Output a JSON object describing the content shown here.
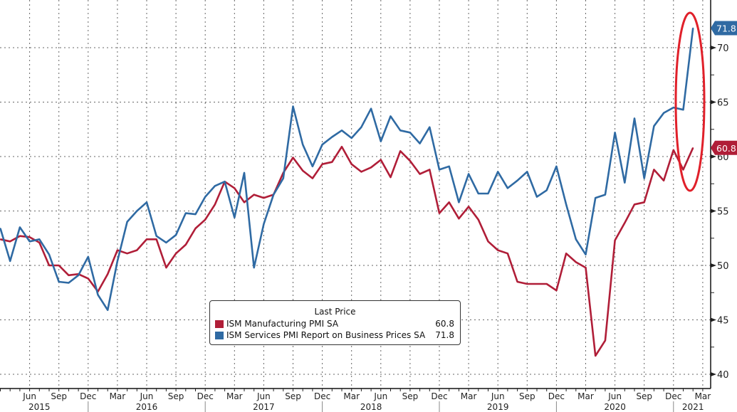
{
  "chart_data": {
    "type": "line",
    "title": "",
    "xlabel": "",
    "ylabel": "",
    "ylim": [
      39,
      73
    ],
    "y_ticks": [
      40,
      45,
      50,
      55,
      60,
      65,
      70
    ],
    "grid": true,
    "legend_placement": "bottom-center",
    "legend_title": "Last Price",
    "x": [
      "2015-03",
      "2015-04",
      "2015-05",
      "2015-06",
      "2015-07",
      "2015-08",
      "2015-09",
      "2015-10",
      "2015-11",
      "2015-12",
      "2016-01",
      "2016-02",
      "2016-03",
      "2016-04",
      "2016-05",
      "2016-06",
      "2016-07",
      "2016-08",
      "2016-09",
      "2016-10",
      "2016-11",
      "2016-12",
      "2017-01",
      "2017-02",
      "2017-03",
      "2017-04",
      "2017-05",
      "2017-06",
      "2017-07",
      "2017-08",
      "2017-09",
      "2017-10",
      "2017-11",
      "2017-12",
      "2018-01",
      "2018-02",
      "2018-03",
      "2018-04",
      "2018-05",
      "2018-06",
      "2018-07",
      "2018-08",
      "2018-09",
      "2018-10",
      "2018-11",
      "2018-12",
      "2019-01",
      "2019-02",
      "2019-03",
      "2019-04",
      "2019-05",
      "2019-06",
      "2019-07",
      "2019-08",
      "2019-09",
      "2019-10",
      "2019-11",
      "2019-12",
      "2020-01",
      "2020-02",
      "2020-03",
      "2020-04",
      "2020-05",
      "2020-06",
      "2020-07",
      "2020-08",
      "2020-09",
      "2020-10",
      "2020-11",
      "2020-12",
      "2021-01",
      "2021-02"
    ],
    "x_ticks": [
      {
        "date": "2015-06",
        "label": "Jun"
      },
      {
        "date": "2015-09",
        "label": "Sep"
      },
      {
        "date": "2015-12",
        "label": "Dec"
      },
      {
        "date": "2016-03",
        "label": "Mar"
      },
      {
        "date": "2016-06",
        "label": "Jun"
      },
      {
        "date": "2016-09",
        "label": "Sep"
      },
      {
        "date": "2016-12",
        "label": "Dec"
      },
      {
        "date": "2017-03",
        "label": "Mar"
      },
      {
        "date": "2017-06",
        "label": "Jun"
      },
      {
        "date": "2017-09",
        "label": "Sep"
      },
      {
        "date": "2017-12",
        "label": "Dec"
      },
      {
        "date": "2018-03",
        "label": "Mar"
      },
      {
        "date": "2018-06",
        "label": "Jun"
      },
      {
        "date": "2018-09",
        "label": "Sep"
      },
      {
        "date": "2018-12",
        "label": "Dec"
      },
      {
        "date": "2019-03",
        "label": "Mar"
      },
      {
        "date": "2019-06",
        "label": "Jun"
      },
      {
        "date": "2019-09",
        "label": "Sep"
      },
      {
        "date": "2019-12",
        "label": "Dec"
      },
      {
        "date": "2020-03",
        "label": "Mar"
      },
      {
        "date": "2020-06",
        "label": "Jun"
      },
      {
        "date": "2020-09",
        "label": "Sep"
      },
      {
        "date": "2020-12",
        "label": "Dec"
      },
      {
        "date": "2021-03",
        "label": "Mar"
      }
    ],
    "year_labels": [
      {
        "label": "2015",
        "date": "2015-07"
      },
      {
        "label": "2016",
        "date": "2016-06"
      },
      {
        "label": "2017",
        "date": "2017-06"
      },
      {
        "label": "2018",
        "date": "2018-05"
      },
      {
        "label": "2019",
        "date": "2019-06"
      },
      {
        "label": "2020",
        "date": "2020-06"
      },
      {
        "label": "2021",
        "date": "2021-02"
      }
    ],
    "year_dividers": [
      "2015-12",
      "2016-12",
      "2017-12",
      "2018-12",
      "2019-12",
      "2020-12"
    ],
    "series": [
      {
        "name": "ISM Manufacturing PMI SA",
        "last_value": "60.8",
        "color": "#b01e38",
        "values": [
          52.4,
          52.2,
          52.7,
          52.6,
          52.1,
          50.0,
          50.0,
          49.1,
          49.2,
          48.8,
          47.6,
          49.2,
          51.4,
          51.1,
          51.4,
          52.4,
          52.4,
          49.8,
          51.1,
          51.9,
          53.4,
          54.2,
          55.6,
          57.7,
          57.1,
          55.8,
          56.5,
          56.2,
          56.5,
          58.5,
          59.9,
          58.7,
          58.0,
          59.3,
          59.5,
          60.9,
          59.3,
          58.6,
          59.0,
          59.7,
          58.1,
          60.5,
          59.6,
          58.4,
          58.8,
          54.8,
          55.8,
          54.3,
          55.4,
          54.2,
          52.2,
          51.4,
          51.1,
          48.5,
          48.3,
          48.3,
          48.3,
          47.7,
          51.1,
          50.3,
          49.8,
          41.7,
          43.1,
          52.3,
          53.9,
          55.6,
          55.8,
          58.8,
          57.8,
          60.6,
          58.8,
          60.8
        ]
      },
      {
        "name": "ISM Services PMI Report on Business Prices SA",
        "last_value": "71.8",
        "color": "#2f6aa3",
        "values": [
          53.4,
          50.4,
          53.5,
          52.2,
          52.4,
          51.0,
          48.5,
          48.4,
          49.1,
          50.8,
          47.3,
          45.9,
          50.4,
          54.0,
          55.0,
          55.8,
          52.7,
          52.1,
          52.8,
          54.8,
          54.7,
          56.3,
          57.3,
          57.7,
          54.4,
          58.5,
          49.8,
          53.8,
          56.5,
          58.0,
          64.6,
          61.1,
          59.1,
          61.1,
          61.8,
          62.4,
          61.7,
          62.7,
          64.4,
          61.4,
          63.7,
          62.4,
          62.2,
          61.2,
          62.7,
          58.8,
          59.1,
          55.8,
          58.4,
          56.6,
          56.6,
          58.6,
          57.1,
          57.8,
          58.6,
          56.3,
          56.9,
          59.1,
          55.6,
          52.4,
          51.0,
          56.2,
          56.5,
          62.2,
          57.6,
          63.5,
          58.0,
          62.8,
          64.0,
          64.5,
          64.3,
          71.8
        ]
      }
    ],
    "annotation_color": "#e0202a"
  }
}
